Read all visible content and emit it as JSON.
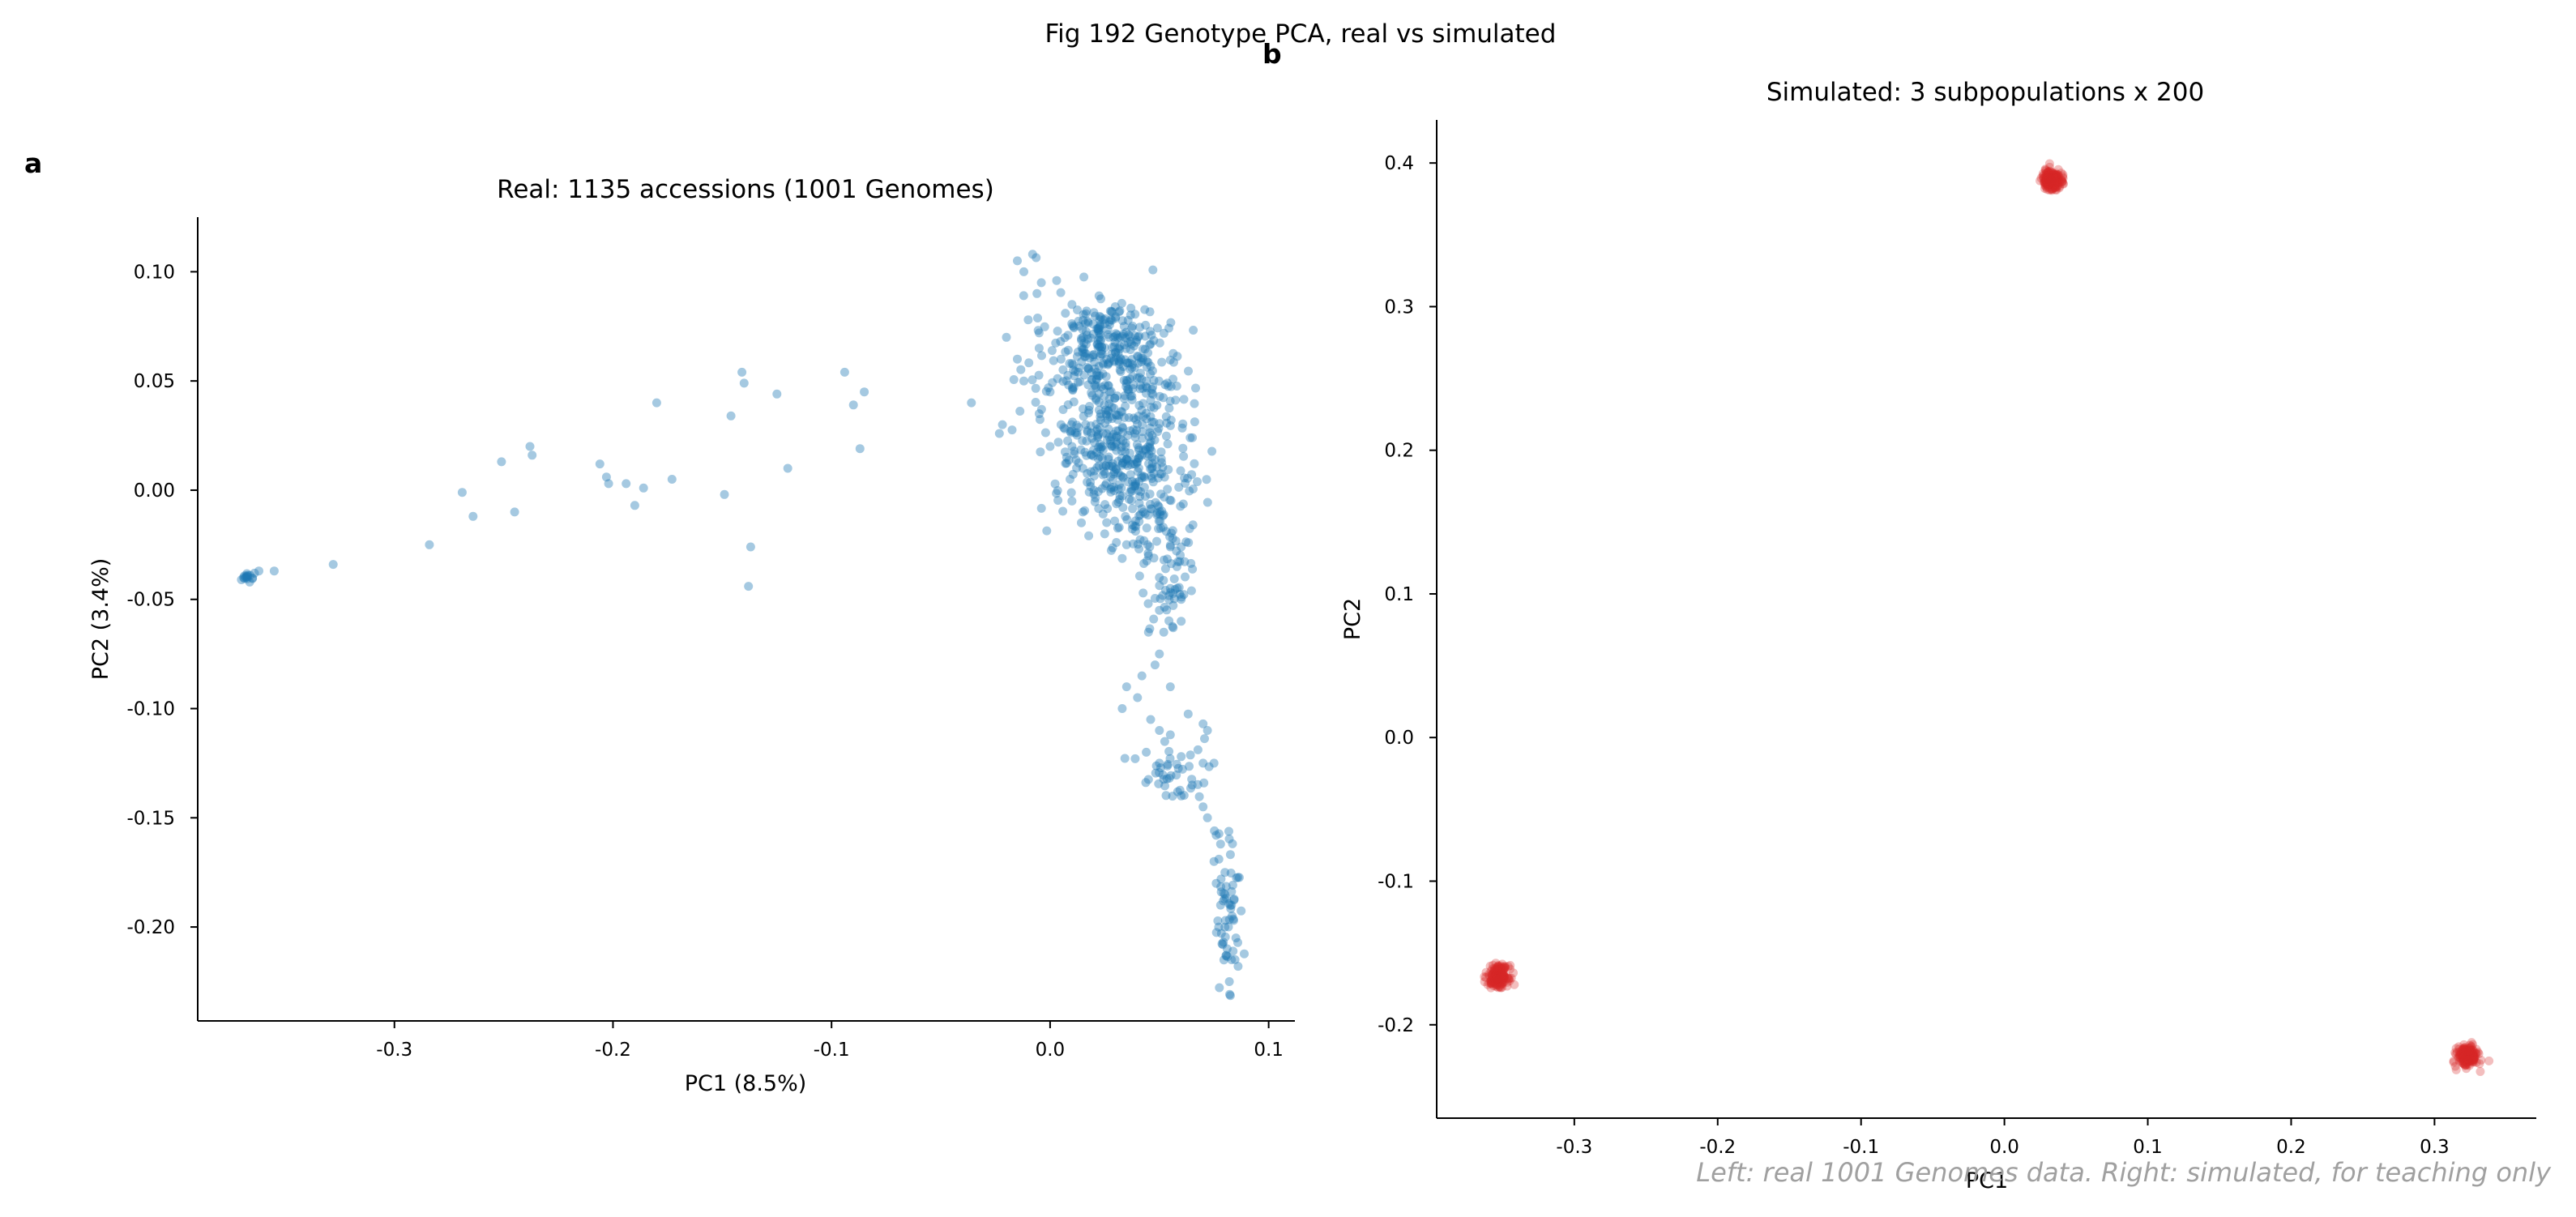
{
  "figure": {
    "suptitle": "Fig 192  Genotype PCA, real vs simulated",
    "footnote": "Left: real 1001 Genomes data. Right: simulated, for teaching only"
  },
  "chart_data": [
    {
      "type": "scatter",
      "panel_label": "a",
      "title": "Real: 1135 accessions (1001 Genomes)",
      "xlabel": "PC1 (8.5%)",
      "ylabel": "PC2 (3.4%)",
      "xlim": [
        -0.39,
        0.112
      ],
      "ylim": [
        -0.243,
        0.125
      ],
      "xticks": [
        -0.3,
        -0.2,
        -0.1,
        0.0,
        0.1
      ],
      "xtick_labels": [
        "-0.3",
        "-0.2",
        "-0.1",
        "0.0",
        "0.1"
      ],
      "yticks": [
        0.1,
        0.05,
        0.0,
        -0.05,
        -0.1,
        -0.15,
        -0.2
      ],
      "ytick_labels": [
        "0.10",
        "0.05",
        "0.00",
        "-0.05",
        "-0.10",
        "-0.15",
        "-0.20"
      ],
      "grid": false,
      "series": [
        {
          "color": "#1f77b4",
          "opacity": 0.4,
          "points": [
            [
              -0.37,
              -0.041
            ],
            [
              -0.369,
              -0.04
            ],
            [
              -0.368,
              -0.04
            ],
            [
              -0.367,
              -0.039
            ],
            [
              -0.366,
              -0.039
            ],
            [
              -0.364,
              -0.038
            ],
            [
              -0.362,
              -0.037
            ],
            [
              -0.355,
              -0.037
            ],
            [
              -0.328,
              -0.034
            ],
            [
              -0.284,
              -0.025
            ],
            [
              -0.269,
              -0.001
            ],
            [
              -0.264,
              -0.012
            ],
            [
              -0.251,
              0.013
            ],
            [
              -0.245,
              -0.01
            ],
            [
              -0.238,
              0.02
            ],
            [
              -0.237,
              0.016
            ],
            [
              -0.206,
              0.012
            ],
            [
              -0.203,
              0.006
            ],
            [
              -0.202,
              0.003
            ],
            [
              -0.194,
              0.003
            ],
            [
              -0.19,
              -0.007
            ],
            [
              -0.186,
              0.001
            ],
            [
              -0.18,
              0.04
            ],
            [
              -0.173,
              0.005
            ],
            [
              -0.149,
              -0.002
            ],
            [
              -0.146,
              0.034
            ],
            [
              -0.141,
              0.054
            ],
            [
              -0.14,
              0.049
            ],
            [
              -0.138,
              -0.044
            ],
            [
              -0.137,
              -0.026
            ],
            [
              -0.125,
              0.044
            ],
            [
              -0.12,
              0.01
            ],
            [
              -0.094,
              0.054
            ],
            [
              -0.09,
              0.039
            ],
            [
              -0.087,
              0.019
            ],
            [
              -0.085,
              0.045
            ],
            [
              -0.036,
              0.04
            ],
            [
              -0.015,
              0.105
            ],
            [
              -0.012,
              0.1
            ],
            [
              -0.008,
              0.108
            ],
            [
              -0.006,
              0.09
            ],
            [
              -0.004,
              0.095
            ],
            [
              0.003,
              0.096
            ],
            [
              0.01,
              0.085
            ],
            [
              -0.01,
              0.078
            ],
            [
              -0.005,
              0.072
            ],
            [
              -0.02,
              0.07
            ],
            [
              -0.015,
              0.06
            ],
            [
              -0.005,
              0.065
            ],
            [
              0.005,
              0.06
            ],
            [
              0.01,
              0.058
            ],
            [
              -0.012,
              0.05
            ],
            [
              0.0,
              0.045
            ],
            [
              0.015,
              0.07
            ],
            [
              0.02,
              0.062
            ],
            [
              0.03,
              0.063
            ],
            [
              0.005,
              0.03
            ],
            [
              0.01,
              0.02
            ],
            [
              0.0,
              0.02
            ],
            [
              -0.005,
              0.035
            ],
            [
              0.015,
              0.01
            ],
            [
              0.02,
              0.0
            ],
            [
              0.01,
              -0.005
            ],
            [
              0.015,
              -0.01
            ],
            [
              0.025,
              -0.02
            ],
            [
              0.035,
              -0.025
            ],
            [
              0.045,
              -0.03
            ],
            [
              0.055,
              -0.026
            ],
            [
              0.06,
              -0.026
            ],
            [
              0.058,
              -0.035
            ],
            [
              0.05,
              -0.04
            ],
            [
              0.055,
              -0.045
            ],
            [
              0.06,
              -0.05
            ],
            [
              0.05,
              -0.055
            ],
            [
              0.06,
              -0.06
            ],
            [
              0.045,
              -0.065
            ],
            [
              0.052,
              -0.065
            ],
            [
              0.05,
              -0.075
            ],
            [
              0.042,
              -0.085
            ],
            [
              0.035,
              -0.09
            ],
            [
              0.048,
              -0.08
            ],
            [
              0.055,
              -0.09
            ],
            [
              0.04,
              -0.095
            ],
            [
              0.033,
              -0.1
            ],
            [
              0.046,
              -0.105
            ],
            [
              0.05,
              -0.11
            ],
            [
              0.055,
              -0.112
            ],
            [
              0.044,
              -0.12
            ],
            [
              0.05,
              -0.125
            ],
            [
              0.06,
              -0.122
            ],
            [
              0.07,
              -0.107
            ],
            [
              0.072,
              -0.11
            ],
            [
              0.07,
              -0.125
            ],
            [
              0.075,
              -0.125
            ],
            [
              0.065,
              -0.135
            ],
            [
              0.06,
              -0.14
            ],
            [
              0.07,
              -0.145
            ],
            [
              0.072,
              -0.15
            ],
            [
              0.076,
              -0.158
            ],
            [
              0.078,
              -0.162
            ],
            [
              0.075,
              -0.17
            ],
            [
              0.08,
              -0.175
            ],
            [
              0.076,
              -0.18
            ],
            [
              0.078,
              -0.19
            ],
            [
              0.083,
              -0.19
            ],
            [
              0.08,
              -0.2
            ],
            [
              0.085,
              -0.205
            ],
            [
              0.081,
              -0.21
            ],
            [
              0.083,
              -0.215
            ],
            [
              0.086,
              -0.218
            ],
            [
              0.082,
              -0.225
            ],
            [
              0.08,
              -0.185
            ],
            [
              0.084,
              -0.197
            ],
            [
              0.079,
              -0.208
            ]
          ],
          "clusters": [
            {
              "center": [
                0.027,
                0.068
              ],
              "spread": [
                0.012,
                0.01
              ],
              "count": 180
            },
            {
              "center": [
                0.035,
                0.045
              ],
              "spread": [
                0.014,
                0.014
              ],
              "count": 170
            },
            {
              "center": [
                0.035,
                0.015
              ],
              "spread": [
                0.015,
                0.012
              ],
              "count": 210
            },
            {
              "center": [
                0.045,
                -0.01
              ],
              "spread": [
                0.012,
                0.012
              ],
              "count": 110
            },
            {
              "center": [
                0.01,
                0.04
              ],
              "spread": [
                0.012,
                0.025
              ],
              "count": 80
            },
            {
              "center": [
                0.055,
                -0.045
              ],
              "spread": [
                0.006,
                0.01
              ],
              "count": 40
            },
            {
              "center": [
                0.055,
                -0.128
              ],
              "spread": [
                0.008,
                0.007
              ],
              "count": 40
            },
            {
              "center": [
                0.081,
                -0.195
              ],
              "spread": [
                0.003,
                0.018
              ],
              "count": 50
            },
            {
              "center": [
                -0.367,
                -0.04
              ],
              "spread": [
                0.0015,
                0.0008
              ],
              "count": 10
            }
          ]
        }
      ]
    },
    {
      "type": "scatter",
      "panel_label": "b",
      "title": "Simulated: 3 subpopulations x 200",
      "xlabel": "PC1",
      "ylabel": "PC2",
      "xlim": [
        -0.396,
        0.371
      ],
      "ylim": [
        -0.265,
        0.43
      ],
      "xticks": [
        -0.3,
        -0.2,
        -0.1,
        0.0,
        0.1,
        0.2,
        0.3
      ],
      "xtick_labels": [
        "-0.3",
        "-0.2",
        "-0.1",
        "0.0",
        "0.1",
        "0.2",
        "0.3"
      ],
      "yticks": [
        0.4,
        0.3,
        0.2,
        0.1,
        0.0,
        -0.1,
        -0.2
      ],
      "ytick_labels": [
        "0.4",
        "0.3",
        "0.2",
        "0.1",
        "0.0",
        "-0.1",
        "-0.2"
      ],
      "grid": false,
      "series": [
        {
          "color": "#d62728",
          "opacity": 0.3,
          "clusters": [
            {
              "center": [
                0.033,
                0.388
              ],
              "spread": [
                0.0035,
                0.0035
              ],
              "count": 200
            },
            {
              "center": [
                -0.353,
                -0.166
              ],
              "spread": [
                0.0035,
                0.0035
              ],
              "count": 200
            },
            {
              "center": [
                0.323,
                -0.222
              ],
              "spread": [
                0.0035,
                0.0035
              ],
              "count": 200
            }
          ]
        }
      ]
    }
  ]
}
